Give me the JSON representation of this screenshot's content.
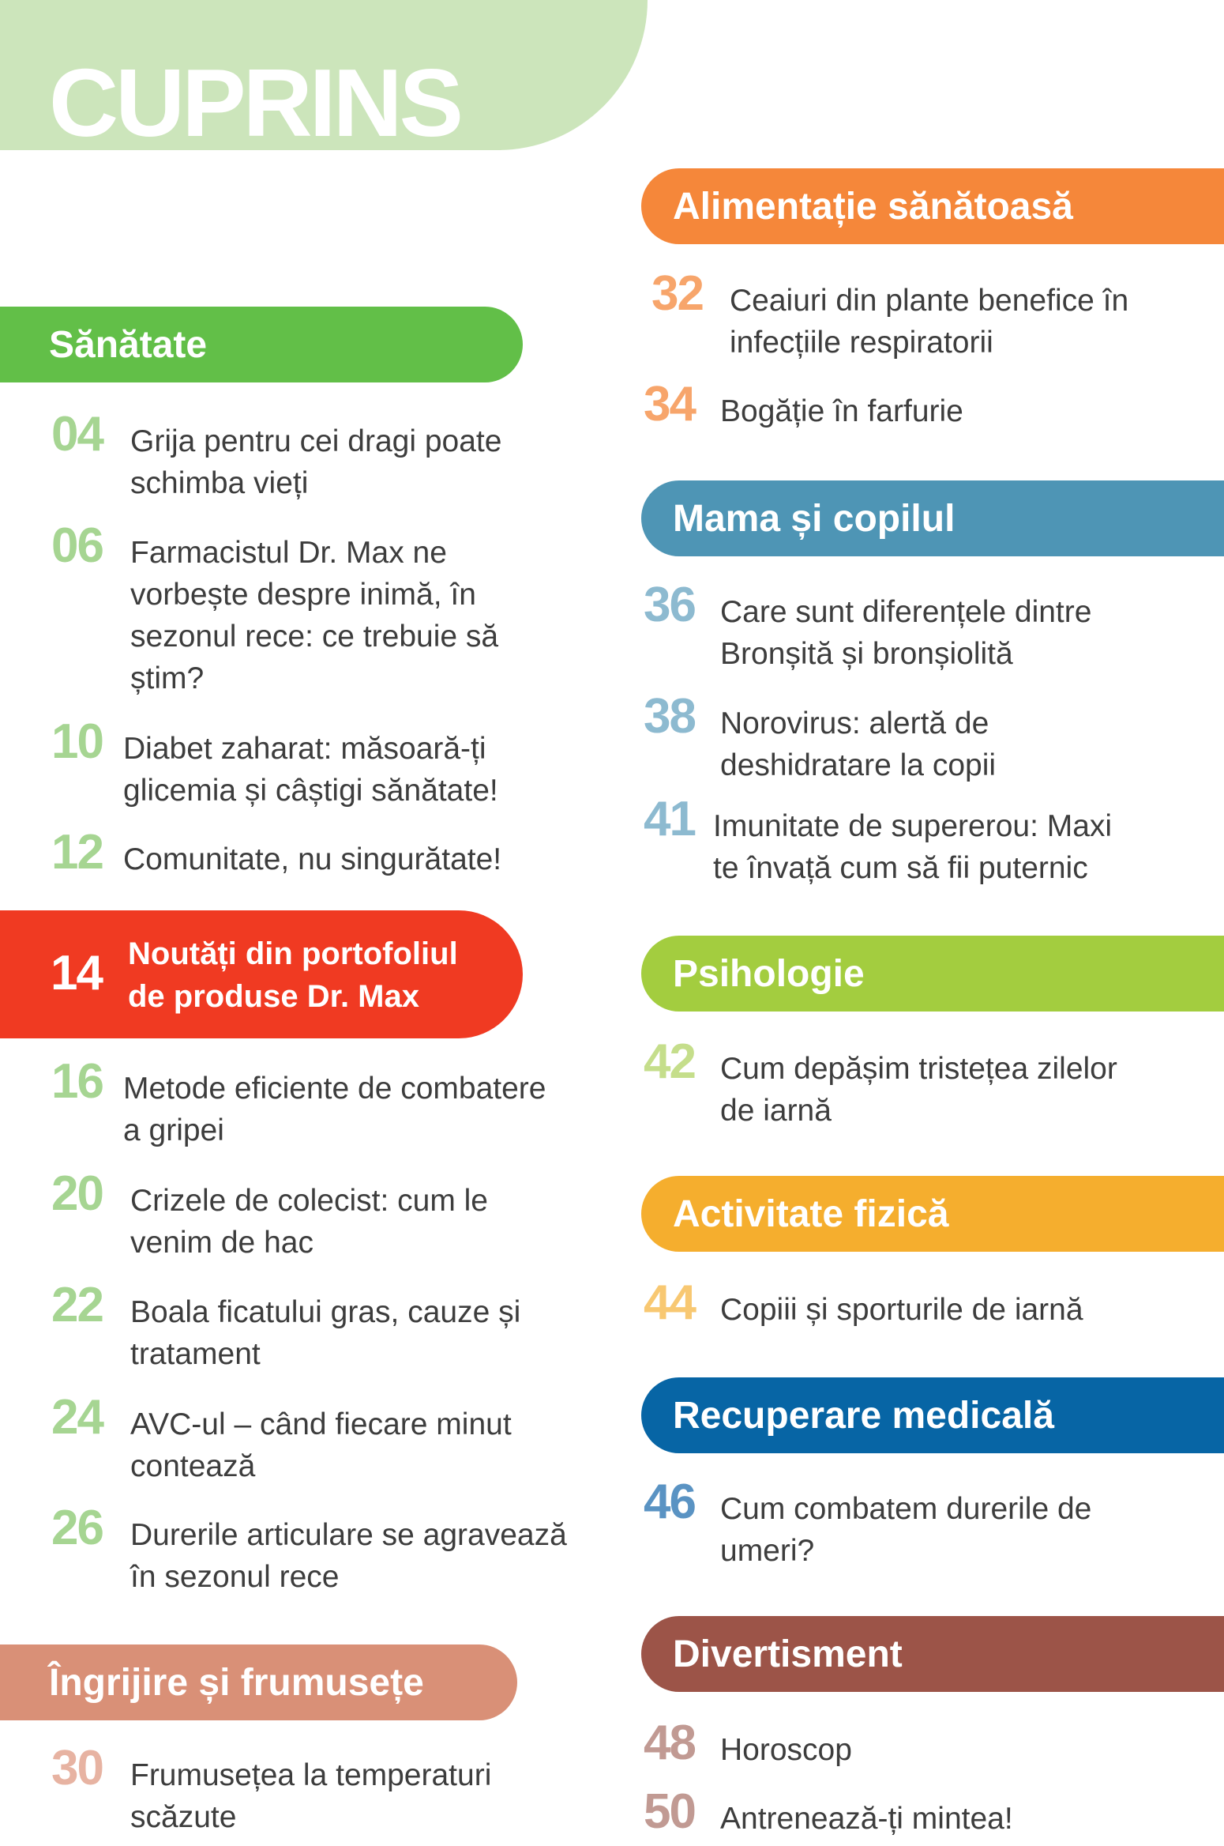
{
  "title": "CUPRINS",
  "colors": {
    "sanatate": "#62bf48",
    "noutati": "#f03a22",
    "ingrijire": "#d99077",
    "alimentatie": "#f5873a",
    "mama": "#4e95b5",
    "psihologie": "#a3cd3f",
    "activitate": "#f5ae2e",
    "recuperare": "#0765a5",
    "divertisment": "#9c5448"
  },
  "sections": {
    "sanatate": {
      "label": "Sănătate",
      "items": [
        {
          "page": "04",
          "title": "Grija pentru cei dragi poate\nschimba vieți"
        },
        {
          "page": "06",
          "title": "Farmacistul Dr. Max ne\nvorbește despre inimă, în\nsezonul rece: ce trebuie să\nștim?"
        },
        {
          "page": "10",
          "title": "Diabet zaharat: măsoară-ți\nglicemia și câștigi sănătate!"
        },
        {
          "page": "12",
          "title": "Comunitate, nu singurătate!"
        }
      ]
    },
    "noutati": {
      "page": "14",
      "title": "Noutăți din portofoliul\nde produse Dr. Max"
    },
    "sanatate2": {
      "items": [
        {
          "page": "16",
          "title": "Metode eficiente de combatere\na gripei"
        },
        {
          "page": "20",
          "title": "Crizele de colecist: cum le\nvenim de hac"
        },
        {
          "page": "22",
          "title": "Boala ficatului gras, cauze și\ntratament"
        },
        {
          "page": "24",
          "title": "AVC-ul – când fiecare minut\ncontează"
        },
        {
          "page": "26",
          "title": "Durerile articulare se agravează\nîn sezonul rece"
        }
      ]
    },
    "ingrijire": {
      "label": "Îngrijire și frumusețe",
      "items": [
        {
          "page": "30",
          "title": "Frumusețea la temperaturi\nscăzute"
        }
      ]
    },
    "alimentatie": {
      "label": "Alimentație sănătoasă",
      "items": [
        {
          "page": "32",
          "title": "Ceaiuri din plante benefice în\ninfecțiile respiratorii"
        },
        {
          "page": "34",
          "title": "Bogăție în farfurie"
        }
      ]
    },
    "mama": {
      "label": "Mama și copilul",
      "items": [
        {
          "page": "36",
          "title": "Care sunt diferențele dintre\nBronșită și bronșiolită"
        },
        {
          "page": "38",
          "title": "Norovirus: alertă de\ndeshidratare la copii"
        },
        {
          "page": "41",
          "title": "Imunitate de supererou: Maxi\nte învață cum să fii puternic"
        }
      ]
    },
    "psihologie": {
      "label": "Psihologie",
      "items": [
        {
          "page": "42",
          "title": "Cum depășim tristețea zilelor\nde iarnă"
        }
      ]
    },
    "activitate": {
      "label": "Activitate fizică",
      "items": [
        {
          "page": "44",
          "title": "Copiii și sporturile de iarnă"
        }
      ]
    },
    "recuperare": {
      "label": "Recuperare medicală",
      "items": [
        {
          "page": "46",
          "title": "Cum combatem durerile de\numeri?"
        }
      ]
    },
    "divertisment": {
      "label": "Divertisment",
      "items": [
        {
          "page": "48",
          "title": "Horoscop"
        },
        {
          "page": "50",
          "title": "Antrenează-ți mintea!"
        }
      ]
    }
  }
}
